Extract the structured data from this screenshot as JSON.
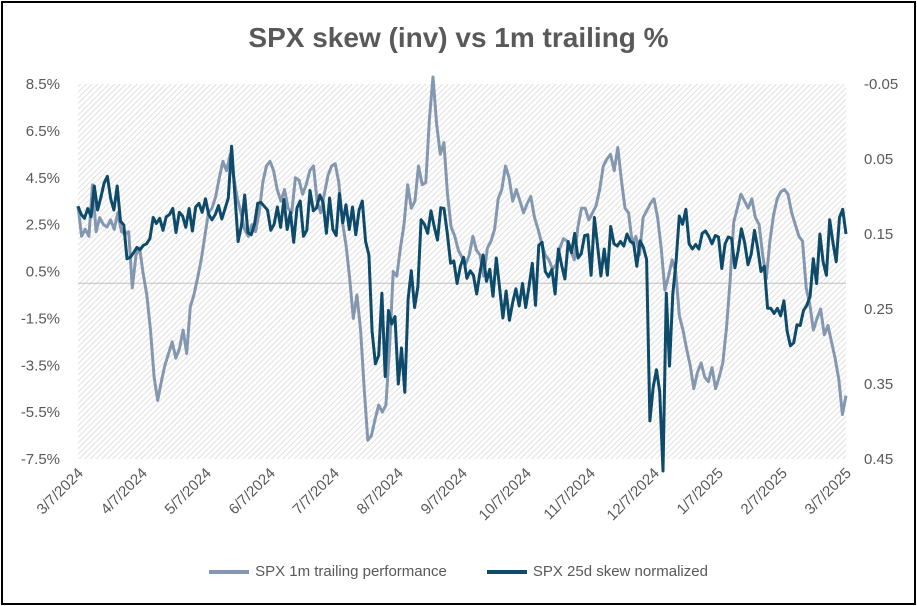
{
  "chart_data": {
    "type": "line",
    "title": "SPX skew (inv) vs 1m trailing %",
    "x_tick_labels": [
      "3/7/2024",
      "4/7/2024",
      "5/7/2024",
      "6/7/2024",
      "7/7/2024",
      "8/7/2024",
      "9/7/2024",
      "10/7/2024",
      "11/7/2024",
      "12/7/2024",
      "1/7/2025",
      "2/7/2025",
      "3/7/2025"
    ],
    "left_axis": {
      "ticks": [
        "8.5%",
        "6.5%",
        "4.5%",
        "2.5%",
        "0.5%",
        "-1.5%",
        "-3.5%",
        "-5.5%",
        "-7.5%"
      ],
      "min": -7.5,
      "max": 8.5
    },
    "right_axis": {
      "ticks": [
        "-0.05",
        "0.05",
        "0.15",
        "0.25",
        "0.35",
        "0.45"
      ],
      "min": -0.05,
      "max": 0.45,
      "inverted": true
    },
    "grid": false,
    "plot_background": "hatched",
    "legend_position": "bottom",
    "series": [
      {
        "name": "SPX 1m trailing performance",
        "axis": "left",
        "color": "#8497b0",
        "values": [
          3.3,
          2.0,
          2.3,
          2.0,
          4.2,
          2.2,
          2.8,
          2.5,
          2.4,
          2.7,
          2.3,
          3.0,
          2.2,
          2.1,
          2.2,
          -0.2,
          1.2,
          1.5,
          0.4,
          -0.5,
          -2.0,
          -4.0,
          -5.0,
          -4.2,
          -3.5,
          -3.0,
          -2.5,
          -3.2,
          -2.8,
          -2.0,
          -3.0,
          -1.0,
          -0.5,
          0.2,
          1.0,
          2.0,
          3.0,
          3.2,
          3.7,
          4.5,
          5.2,
          4.8,
          5.5,
          4.5,
          3.6,
          3.0,
          2.3,
          2.0,
          2.5,
          2.2,
          3.0,
          4.3,
          5.0,
          5.2,
          4.8,
          4.0,
          3.5,
          4.0,
          3.2,
          3.0,
          4.5,
          4.4,
          3.8,
          4.2,
          4.8,
          5.0,
          3.5,
          3.0,
          3.8,
          4.6,
          5.0,
          5.1,
          4.3,
          2.6,
          1.6,
          0.2,
          -1.5,
          -0.5,
          -2.0,
          -4.5,
          -6.7,
          -6.5,
          -5.8,
          -5.2,
          -5.5,
          -5.2,
          -2.8,
          0.5,
          0.3,
          1.5,
          2.5,
          4.2,
          3.2,
          3.5,
          5.0,
          4.2,
          4.3,
          7.0,
          8.8,
          6.8,
          5.5,
          6.0,
          3.8,
          2.4,
          2.0,
          1.4,
          1.1,
          0.8,
          1.2,
          2.0,
          1.4,
          1.2,
          0.3,
          1.5,
          1.8,
          2.3,
          3.6,
          4.0,
          5.0,
          4.5,
          3.5,
          4.0,
          3.5,
          3.0,
          3.4,
          3.7,
          2.8,
          2.3,
          1.7,
          1.2,
          1.0,
          0.6,
          0.8,
          1.5,
          1.9,
          1.8,
          1.4,
          1.0,
          2.4,
          3.2,
          3.2,
          2.7,
          3.0,
          3.3,
          4.0,
          5.0,
          5.3,
          5.5,
          4.8,
          5.8,
          4.4,
          3.2,
          3.0,
          1.7,
          2.0,
          1.2,
          2.8,
          3.1,
          3.4,
          3.6,
          2.8,
          1.5,
          -0.3,
          0.3,
          1.0,
          0.5,
          -1.4,
          -2.0,
          -2.8,
          -3.5,
          -4.5,
          -3.8,
          -3.4,
          -4.0,
          -4.2,
          -3.6,
          -4.5,
          -4.0,
          -3.4,
          -1.9,
          0.1,
          2.6,
          3.2,
          3.8,
          3.5,
          3.2,
          3.6,
          2.8,
          2.5,
          1.2,
          0.2,
          1.8,
          2.9,
          3.6,
          3.9,
          4.0,
          3.8,
          3.0,
          2.5,
          2.0,
          1.8,
          -0.2,
          -0.9,
          -2.0,
          -1.5,
          -1.1,
          -2.2,
          -1.8,
          -2.5,
          -3.2,
          -4.1,
          -5.6,
          -4.8
        ]
      },
      {
        "name": "SPX 25d skew normalized",
        "axis": "right",
        "color": "#0e4a6a",
        "values": [
          0.113,
          0.124,
          0.129,
          0.116,
          0.127,
          0.086,
          0.118,
          0.101,
          0.082,
          0.073,
          0.103,
          0.118,
          0.086,
          0.133,
          0.138,
          0.183,
          0.181,
          0.175,
          0.168,
          0.171,
          0.165,
          0.163,
          0.156,
          0.128,
          0.136,
          0.129,
          0.145,
          0.127,
          0.124,
          0.116,
          0.148,
          0.121,
          0.126,
          0.141,
          0.116,
          0.146,
          0.114,
          0.109,
          0.121,
          0.103,
          0.124,
          0.131,
          0.124,
          0.112,
          0.13,
          0.116,
          0.102,
          0.033,
          0.098,
          0.16,
          0.139,
          0.098,
          0.148,
          0.151,
          0.137,
          0.109,
          0.108,
          0.113,
          0.118,
          0.145,
          0.137,
          0.114,
          0.141,
          0.104,
          0.144,
          0.121,
          0.161,
          0.115,
          0.106,
          0.153,
          0.145,
          0.092,
          0.119,
          0.115,
          0.098,
          0.108,
          0.149,
          0.102,
          0.144,
          0.152,
          0.096,
          0.135,
          0.111,
          0.144,
          0.114,
          0.151,
          0.118,
          0.106,
          0.16,
          0.178,
          0.28,
          0.323,
          0.312,
          0.229,
          0.34,
          0.252,
          0.27,
          0.26,
          0.35,
          0.302,
          0.361,
          0.237,
          0.199,
          0.248,
          0.22,
          0.131,
          0.137,
          0.149,
          0.119,
          0.14,
          0.158,
          0.115,
          0.116,
          0.149,
          0.189,
          0.186,
          0.216,
          0.193,
          0.181,
          0.209,
          0.199,
          0.205,
          0.23,
          0.201,
          0.178,
          0.213,
          0.197,
          0.233,
          0.182,
          0.222,
          0.262,
          0.226,
          0.265,
          0.241,
          0.223,
          0.246,
          0.216,
          0.248,
          0.22,
          0.189,
          0.245,
          0.165,
          0.161,
          0.2,
          0.207,
          0.197,
          0.23,
          0.17,
          0.192,
          0.21,
          0.16,
          0.175,
          0.149,
          0.182,
          0.176,
          0.152,
          0.151,
          0.205,
          0.128,
          0.166,
          0.206,
          0.17,
          0.205,
          0.14,
          0.163,
          0.166,
          0.16,
          0.166,
          0.15,
          0.16,
          0.162,
          0.193,
          0.159,
          0.168,
          0.184,
          0.399,
          0.354,
          0.331,
          0.36,
          0.466,
          0.229,
          0.326,
          0.23,
          0.186,
          0.126,
          0.137,
          0.117,
          0.163,
          0.17,
          0.164,
          0.17,
          0.149,
          0.146,
          0.153,
          0.163,
          0.152,
          0.154,
          0.196,
          0.163,
          0.154,
          0.156,
          0.195,
          0.172,
          0.143,
          0.162,
          0.191,
          0.177,
          0.145,
          0.17,
          0.2,
          0.193,
          0.249,
          0.249,
          0.256,
          0.249,
          0.259,
          0.239,
          0.28,
          0.299,
          0.295,
          0.271,
          0.272,
          0.252,
          0.245,
          0.233,
          0.183,
          0.216,
          0.15,
          0.187,
          0.205,
          0.131,
          0.161,
          0.187,
          0.128,
          0.117,
          0.15
        ]
      }
    ]
  }
}
